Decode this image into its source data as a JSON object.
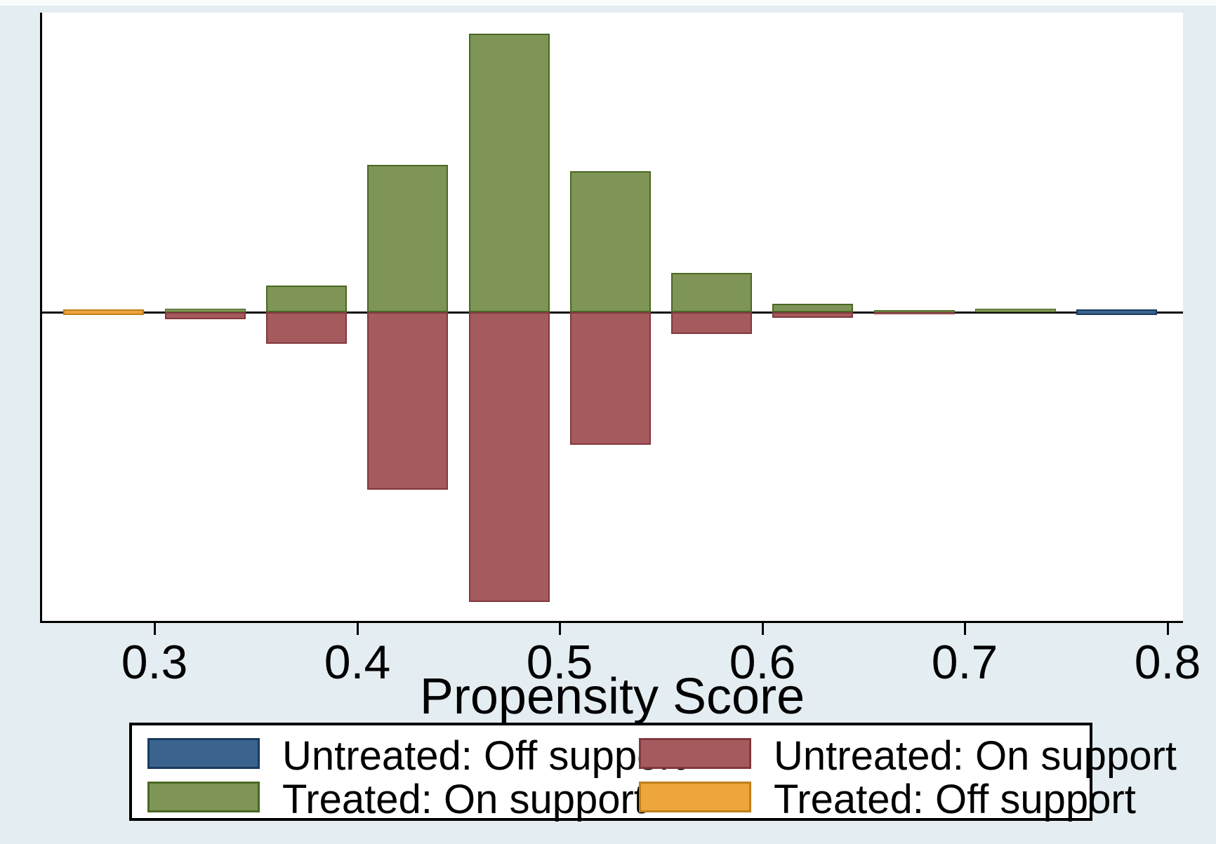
{
  "figure": {
    "background_color": "#e4edf1",
    "plot_background_color": "#ffffff",
    "axis_color": "#000000"
  },
  "x_axis": {
    "title": "Propensity Score",
    "tick_labels": [
      "0.3",
      "0.4",
      "0.5",
      "0.6",
      "0.7",
      "0.8"
    ],
    "tick_values": [
      0.3,
      0.4,
      0.5,
      0.6,
      0.7,
      0.8
    ]
  },
  "colors": {
    "untreated_off_fill": "#3a648e",
    "untreated_off_border": "#1a3a5e",
    "untreated_on_fill": "#a55a5e",
    "untreated_on_border": "#82383e",
    "treated_on_fill": "#7e9557",
    "treated_on_border": "#4b6722",
    "treated_off_fill": "#eea53c",
    "treated_off_border": "#c07f1c"
  },
  "legend": {
    "items": [
      {
        "label": "Untreated: Off support",
        "series": "untreated_off"
      },
      {
        "label": "Untreated: On support",
        "series": "untreated_on"
      },
      {
        "label": "Treated: On support",
        "series": "treated_on"
      },
      {
        "label": "Treated: Off support",
        "series": "treated_off"
      }
    ]
  },
  "chart_data": {
    "type": "bar",
    "subtype": "mirrored-propensity-histogram",
    "title": "",
    "xlabel": "Propensity Score",
    "ylabel": "",
    "x_ticks": [
      0.3,
      0.4,
      0.5,
      0.6,
      0.7,
      0.8
    ],
    "x_range": [
      0.295,
      0.812
    ],
    "bin_width": 0.05,
    "units": "bar extent in source-image pixels (treated drawn upward, untreated drawn downward)",
    "legend_position": "bottom",
    "grid": false,
    "bins": [
      {
        "center": 0.275,
        "treated_on": 0,
        "untreated_on": 0,
        "treated_off": 8,
        "untreated_off": 0
      },
      {
        "center": 0.325,
        "treated_on": 5,
        "untreated_on": 10,
        "treated_off": 0,
        "untreated_off": 0
      },
      {
        "center": 0.375,
        "treated_on": 38,
        "untreated_on": 45,
        "treated_off": 0,
        "untreated_off": 0
      },
      {
        "center": 0.425,
        "treated_on": 210,
        "untreated_on": 253,
        "treated_off": 0,
        "untreated_off": 0
      },
      {
        "center": 0.475,
        "treated_on": 397,
        "untreated_on": 413,
        "treated_off": 0,
        "untreated_off": 0
      },
      {
        "center": 0.525,
        "treated_on": 201,
        "untreated_on": 189,
        "treated_off": 0,
        "untreated_off": 0
      },
      {
        "center": 0.575,
        "treated_on": 56,
        "untreated_on": 31,
        "treated_off": 0,
        "untreated_off": 0
      },
      {
        "center": 0.625,
        "treated_on": 12,
        "untreated_on": 8,
        "treated_off": 0,
        "untreated_off": 0
      },
      {
        "center": 0.675,
        "treated_on": 3,
        "untreated_on": 3,
        "treated_off": 0,
        "untreated_off": 0
      },
      {
        "center": 0.725,
        "treated_on": 5,
        "untreated_on": 0,
        "treated_off": 0,
        "untreated_off": 0
      },
      {
        "center": 0.775,
        "treated_on": 0,
        "untreated_on": 0,
        "treated_off": 0,
        "untreated_off": 8
      }
    ]
  }
}
